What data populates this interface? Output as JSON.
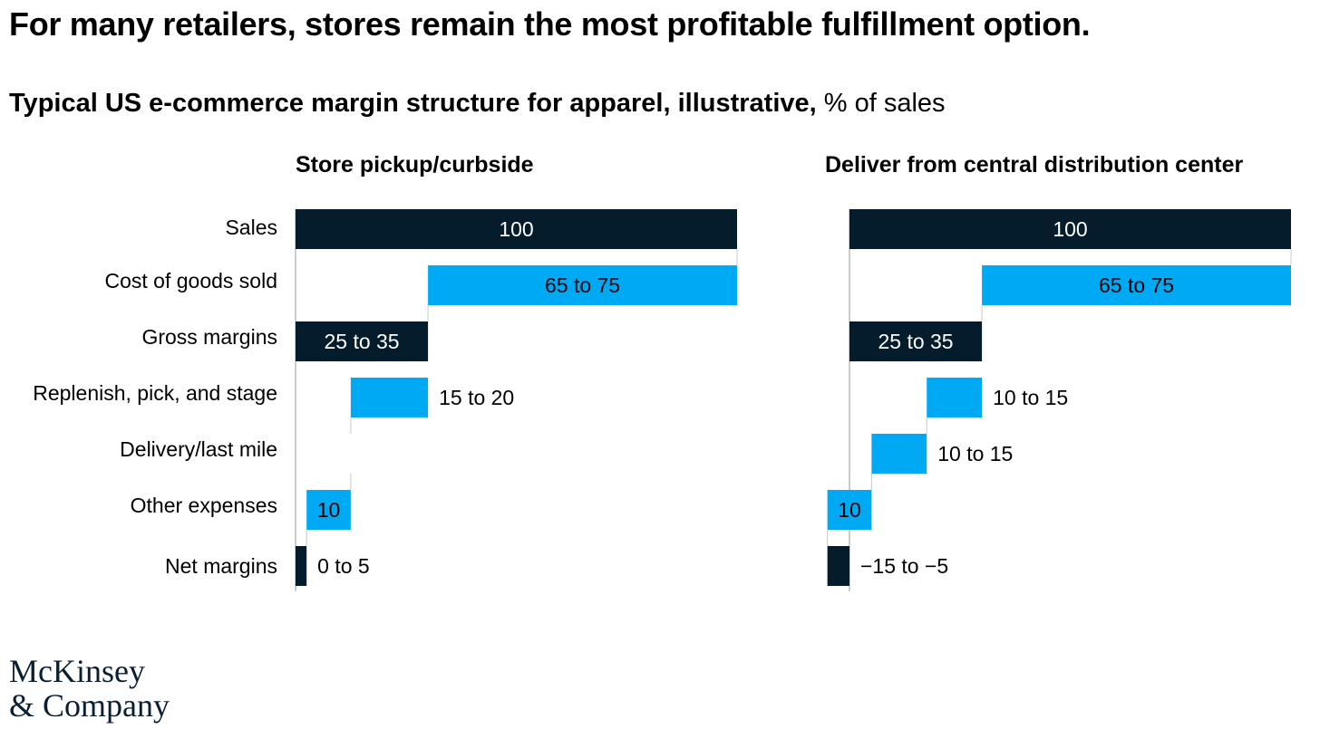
{
  "title": "For many retailers, stores remain the most profitable fulfillment option.",
  "subtitle": {
    "bold": "Typical US e-commerce margin structure for apparel, illustrative,",
    "unit": "% of sales"
  },
  "colors": {
    "dark": "#051c2c",
    "blue": "#00a9f4",
    "connector": "#c8c8c8"
  },
  "row_labels": [
    "Sales",
    "Cost of goods sold",
    "Gross margins",
    "Replenish, pick, and stage",
    "Delivery/last mile",
    "Other expenses",
    "Net margins"
  ],
  "chart_data": [
    {
      "type": "waterfall",
      "title": "Store pickup/curbside",
      "categories": [
        "Sales",
        "Cost of goods sold",
        "Gross margins",
        "Replenish, pick, and stage",
        "Delivery/last mile",
        "Other expenses",
        "Net margins"
      ],
      "bars": [
        {
          "start": 0,
          "end": 100,
          "kind": "total",
          "label": "100",
          "label_pos": "inside"
        },
        {
          "start": 30,
          "end": 100,
          "kind": "delta",
          "label": "65 to 75",
          "label_pos": "inside"
        },
        {
          "start": 0,
          "end": 30,
          "kind": "total",
          "label": "25 to 35",
          "label_pos": "inside"
        },
        {
          "start": 12.5,
          "end": 30,
          "kind": "delta",
          "label": "15 to 20",
          "label_pos": "right"
        },
        {
          "start": 12.5,
          "end": 12.5,
          "kind": "delta",
          "label": "",
          "label_pos": "none"
        },
        {
          "start": 2.5,
          "end": 12.5,
          "kind": "delta",
          "label": "10",
          "label_pos": "inside"
        },
        {
          "start": 0,
          "end": 2.5,
          "kind": "total",
          "label": "0 to 5",
          "label_pos": "right"
        }
      ],
      "xlim": [
        0,
        100
      ]
    },
    {
      "type": "waterfall",
      "title": "Deliver from central distribution center",
      "categories": [
        "Sales",
        "Cost of goods sold",
        "Gross margins",
        "Replenish, pick, and stage",
        "Delivery/last mile",
        "Other expenses",
        "Net margins"
      ],
      "bars": [
        {
          "start": 0,
          "end": 100,
          "kind": "total",
          "label": "100",
          "label_pos": "inside"
        },
        {
          "start": 30,
          "end": 100,
          "kind": "delta",
          "label": "65 to 75",
          "label_pos": "inside"
        },
        {
          "start": 0,
          "end": 30,
          "kind": "total",
          "label": "25 to 35",
          "label_pos": "inside"
        },
        {
          "start": 17.5,
          "end": 30,
          "kind": "delta",
          "label": "10 to 15",
          "label_pos": "right"
        },
        {
          "start": 5,
          "end": 17.5,
          "kind": "delta",
          "label": "10 to 15",
          "label_pos": "right"
        },
        {
          "start": -5,
          "end": 5,
          "kind": "delta",
          "label": "10",
          "label_pos": "inside"
        },
        {
          "start": -5,
          "end": 0,
          "kind": "total",
          "label": "−15 to −5",
          "label_pos": "right"
        }
      ],
      "xlim": [
        0,
        100
      ]
    }
  ],
  "logo": {
    "line1": "McKinsey",
    "line2": "& Company"
  }
}
